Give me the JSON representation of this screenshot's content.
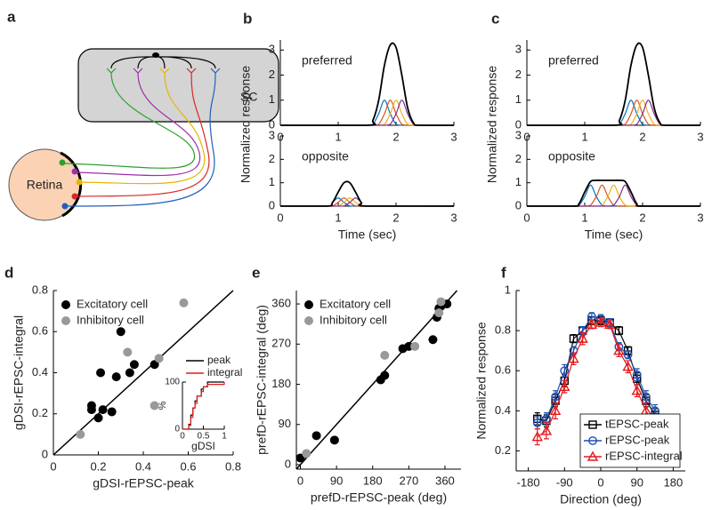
{
  "diagram": {
    "panel_label": "a",
    "retina": "Retina",
    "sc": "SC"
  },
  "chart_data": [
    {
      "type": "line",
      "panel_label": "b",
      "annotation": "preferred",
      "ylabel": "Normalized response",
      "smooth": true,
      "x": [
        0,
        1.5,
        1.6,
        1.7,
        1.8,
        1.9,
        2.0,
        2.1,
        2.2,
        2.3,
        2.4,
        3
      ],
      "xlim": [
        0,
        3
      ],
      "ylim": [
        0,
        3.4
      ],
      "xticks": [
        0,
        1,
        2,
        3
      ],
      "yticks": [
        0,
        1,
        2,
        3
      ],
      "series": [
        {
          "color": "#0072bd",
          "values": [
            0,
            0,
            0.04,
            0.46,
            1,
            0.46,
            0.04,
            0,
            0,
            0,
            0,
            0
          ]
        },
        {
          "color": "#d95319",
          "values": [
            0,
            0,
            0,
            0.04,
            0.46,
            1,
            0.46,
            0.04,
            0,
            0,
            0,
            0
          ]
        },
        {
          "color": "#edb120",
          "values": [
            0,
            0,
            0,
            0,
            0.04,
            0.46,
            1,
            0.46,
            0.04,
            0,
            0,
            0
          ]
        },
        {
          "color": "#7e2f8e",
          "values": [
            0,
            0,
            0,
            0,
            0,
            0.04,
            0.46,
            1,
            0.46,
            0.04,
            0,
            0
          ]
        },
        {
          "color": "#000000",
          "values": [
            0,
            0,
            0.2,
            1.0,
            2.4,
            3.2,
            3.1,
            2.0,
            0.7,
            0.1,
            0,
            0
          ]
        }
      ]
    },
    {
      "type": "line",
      "annotation": "opposite",
      "xlabel": "Time (sec)",
      "smooth": true,
      "x": [
        0,
        0.8,
        0.9,
        1.0,
        1.1,
        1.2,
        1.3,
        1.4,
        1.5,
        3
      ],
      "xlim": [
        0,
        3
      ],
      "ylim": [
        0,
        3
      ],
      "xticks": [
        0,
        1,
        2,
        3
      ],
      "yticks": [
        0,
        1,
        2,
        3
      ],
      "series": [
        {
          "color": "#0072bd",
          "values": [
            0,
            0,
            0.16,
            0.35,
            0.16,
            0.01,
            0,
            0,
            0,
            0
          ]
        },
        {
          "color": "#d95319",
          "values": [
            0,
            0,
            0.01,
            0.16,
            0.35,
            0.16,
            0.01,
            0,
            0,
            0
          ]
        },
        {
          "color": "#edb120",
          "values": [
            0,
            0,
            0,
            0.01,
            0.16,
            0.35,
            0.16,
            0.01,
            0,
            0
          ]
        },
        {
          "color": "#7e2f8e",
          "values": [
            0,
            0,
            0,
            0,
            0.01,
            0.16,
            0.35,
            0.16,
            0.01,
            0
          ]
        },
        {
          "color": "#000000",
          "values": [
            0,
            0,
            0.15,
            0.6,
            1.0,
            1.0,
            0.6,
            0.15,
            0,
            0
          ]
        }
      ]
    },
    {
      "type": "line",
      "panel_label": "c",
      "annotation": "preferred",
      "ylabel": "Normalized response",
      "smooth": true,
      "x": [
        0,
        1.5,
        1.6,
        1.7,
        1.8,
        1.9,
        2.0,
        2.1,
        2.2,
        2.3,
        2.4,
        3
      ],
      "xlim": [
        0,
        3
      ],
      "ylim": [
        0,
        3.4
      ],
      "xticks": [
        0,
        1,
        2,
        3
      ],
      "yticks": [
        0,
        1,
        2,
        3
      ],
      "series": [
        {
          "color": "#0072bd",
          "values": [
            0,
            0,
            0.04,
            0.46,
            1,
            0.46,
            0.04,
            0,
            0,
            0,
            0,
            0
          ]
        },
        {
          "color": "#d95319",
          "values": [
            0,
            0,
            0,
            0.04,
            0.46,
            1,
            0.46,
            0.04,
            0,
            0,
            0,
            0
          ]
        },
        {
          "color": "#edb120",
          "values": [
            0,
            0,
            0,
            0,
            0.04,
            0.46,
            1,
            0.46,
            0.04,
            0,
            0,
            0
          ]
        },
        {
          "color": "#7e2f8e",
          "values": [
            0,
            0,
            0,
            0,
            0,
            0.04,
            0.46,
            1,
            0.46,
            0.04,
            0,
            0
          ]
        },
        {
          "color": "#000000",
          "values": [
            0,
            0,
            0.2,
            1.0,
            2.4,
            3.2,
            3.1,
            2.0,
            0.7,
            0.1,
            0,
            0
          ]
        }
      ]
    },
    {
      "type": "line",
      "annotation": "opposite",
      "xlabel": "Time (sec)",
      "smooth": true,
      "x": [
        0,
        0.8,
        0.9,
        1.0,
        1.1,
        1.2,
        1.3,
        1.4,
        1.5,
        1.6,
        1.7,
        1.8,
        1.9,
        2.0,
        3
      ],
      "xlim": [
        0,
        3
      ],
      "ylim": [
        0,
        3
      ],
      "xticks": [
        0,
        1,
        2,
        3
      ],
      "yticks": [
        0,
        1,
        2,
        3
      ],
      "series": [
        {
          "color": "#0072bd",
          "values": [
            0,
            0,
            0.04,
            0.41,
            0.9,
            0.41,
            0.04,
            0,
            0,
            0,
            0,
            0,
            0,
            0,
            0
          ]
        },
        {
          "color": "#d95319",
          "values": [
            0,
            0,
            0,
            0,
            0.04,
            0.41,
            0.9,
            0.41,
            0.04,
            0,
            0,
            0,
            0,
            0,
            0
          ]
        },
        {
          "color": "#edb120",
          "values": [
            0,
            0,
            0,
            0,
            0,
            0,
            0.04,
            0.41,
            0.9,
            0.41,
            0.04,
            0,
            0,
            0,
            0
          ]
        },
        {
          "color": "#7e2f8e",
          "values": [
            0,
            0,
            0,
            0,
            0,
            0,
            0,
            0,
            0.04,
            0.41,
            0.9,
            0.41,
            0.04,
            0,
            0
          ]
        },
        {
          "color": "#000000",
          "values": [
            0,
            0,
            0.1,
            0.6,
            1.05,
            1.1,
            1.1,
            1.1,
            1.1,
            1.1,
            1.05,
            0.6,
            0.1,
            0,
            0
          ]
        }
      ]
    },
    {
      "type": "scatter",
      "panel_label": "d",
      "xlabel": "gDSI-rEPSC-peak",
      "ylabel": "gDSI-rEPSC-integral",
      "xlim": [
        0,
        0.8
      ],
      "ylim": [
        0,
        0.8
      ],
      "xticks": [
        0,
        0.2,
        0.4,
        0.6,
        0.8
      ],
      "yticks": [
        0,
        0.2,
        0.4,
        0.6,
        0.8
      ],
      "identity_line": true,
      "legend": "upper left",
      "series": [
        {
          "name": "Excitatory cell",
          "color": "#000000",
          "x": [
            0.17,
            0.17,
            0.2,
            0.21,
            0.22,
            0.26,
            0.28,
            0.3,
            0.34,
            0.36,
            0.45
          ],
          "values": [
            0.24,
            0.22,
            0.18,
            0.4,
            0.22,
            0.21,
            0.38,
            0.6,
            0.4,
            0.44,
            0.44
          ]
        },
        {
          "name": "Inhibitory cell",
          "color": "#999999",
          "x": [
            0.12,
            0.33,
            0.45,
            0.47,
            0.58
          ],
          "values": [
            0.1,
            0.5,
            0.24,
            0.47,
            0.74
          ]
        }
      ]
    },
    {
      "type": "line",
      "step": true,
      "xlabel": "gDSI",
      "ylabel": "%",
      "xlim": [
        0,
        1
      ],
      "ylim": [
        0,
        100
      ],
      "xticks": [
        0,
        0.5,
        1
      ],
      "yticks": [
        0,
        100
      ],
      "legend": "upper left",
      "x": [
        0,
        0.1,
        0.15,
        0.2,
        0.25,
        0.3,
        0.35,
        0.45,
        0.5,
        0.6,
        1
      ],
      "series": [
        {
          "name": "peak",
          "color": "#000000",
          "values": [
            0,
            0,
            10,
            30,
            45,
            60,
            70,
            85,
            90,
            100,
            100
          ]
        },
        {
          "name": "integral",
          "color": "#e41a1c",
          "values": [
            0,
            0,
            8,
            25,
            45,
            55,
            70,
            80,
            90,
            95,
            100
          ]
        }
      ]
    },
    {
      "type": "scatter",
      "panel_label": "e",
      "xlabel": "prefD-rEPSC-peak (deg)",
      "ylabel": "prefD-rEPSC-integral (deg)",
      "xlim": [
        -10,
        400
      ],
      "ylim": [
        -10,
        390
      ],
      "xticks": [
        0,
        90,
        180,
        270,
        360
      ],
      "yticks": [
        0,
        90,
        180,
        270,
        360
      ],
      "identity_line": true,
      "legend": "upper left",
      "series": [
        {
          "name": "Excitatory cell",
          "color": "#000000",
          "x": [
            0,
            40,
            85,
            200,
            210,
            255,
            270,
            330,
            340,
            345,
            350,
            365
          ],
          "values": [
            15,
            65,
            55,
            190,
            200,
            260,
            265,
            280,
            330,
            350,
            355,
            360
          ]
        },
        {
          "name": "Inhibitory cell",
          "color": "#999999",
          "x": [
            15,
            210,
            285,
            345,
            350
          ],
          "values": [
            25,
            245,
            265,
            340,
            365
          ]
        }
      ]
    },
    {
      "type": "line",
      "panel_label": "f",
      "xlabel": "Direction (deg)",
      "ylabel": "Normalized response",
      "xlim": [
        -210,
        210
      ],
      "ylim": [
        0.1,
        1
      ],
      "xticks": [
        -180,
        -90,
        0,
        90,
        180
      ],
      "yticks": [
        0.2,
        0.4,
        0.6,
        0.8,
        1
      ],
      "legend": "lower right",
      "x": [
        -157.5,
        -135,
        -112.5,
        -90,
        -67.5,
        -45,
        -22.5,
        0,
        22.5,
        45,
        67.5,
        90,
        112.5,
        135,
        157.5
      ],
      "series": [
        {
          "name": "tEPSC-peak",
          "color": "#000000",
          "marker": "square",
          "values": [
            0.36,
            0.35,
            0.45,
            0.55,
            0.76,
            0.8,
            0.85,
            0.85,
            0.84,
            0.8,
            0.7,
            0.56,
            0.45,
            0.38,
            0.33
          ],
          "errors": [
            0.03,
            0.03,
            0.03,
            0.03,
            0.02,
            0.02,
            0.02,
            0.02,
            0.02,
            0.02,
            0.02,
            0.03,
            0.03,
            0.03,
            0.03
          ]
        },
        {
          "name": "rEPSC-peak",
          "color": "#1f4fb4",
          "marker": "circle",
          "values": [
            0.34,
            0.36,
            0.47,
            0.6,
            0.7,
            0.8,
            0.87,
            0.86,
            0.84,
            0.72,
            0.68,
            0.58,
            0.47,
            0.4,
            0.3
          ],
          "errors": [
            0.03,
            0.03,
            0.03,
            0.03,
            0.02,
            0.02,
            0.02,
            0.02,
            0.02,
            0.02,
            0.02,
            0.03,
            0.03,
            0.03,
            0.03
          ]
        },
        {
          "name": "rEPSC-integral",
          "color": "#e41a1c",
          "marker": "triangle",
          "values": [
            0.27,
            0.3,
            0.4,
            0.52,
            0.66,
            0.76,
            0.83,
            0.84,
            0.83,
            0.7,
            0.62,
            0.5,
            0.4,
            0.32,
            0.26
          ],
          "errors": [
            0.04,
            0.04,
            0.04,
            0.03,
            0.03,
            0.03,
            0.02,
            0.02,
            0.02,
            0.03,
            0.03,
            0.03,
            0.04,
            0.04,
            0.04
          ]
        }
      ]
    }
  ]
}
